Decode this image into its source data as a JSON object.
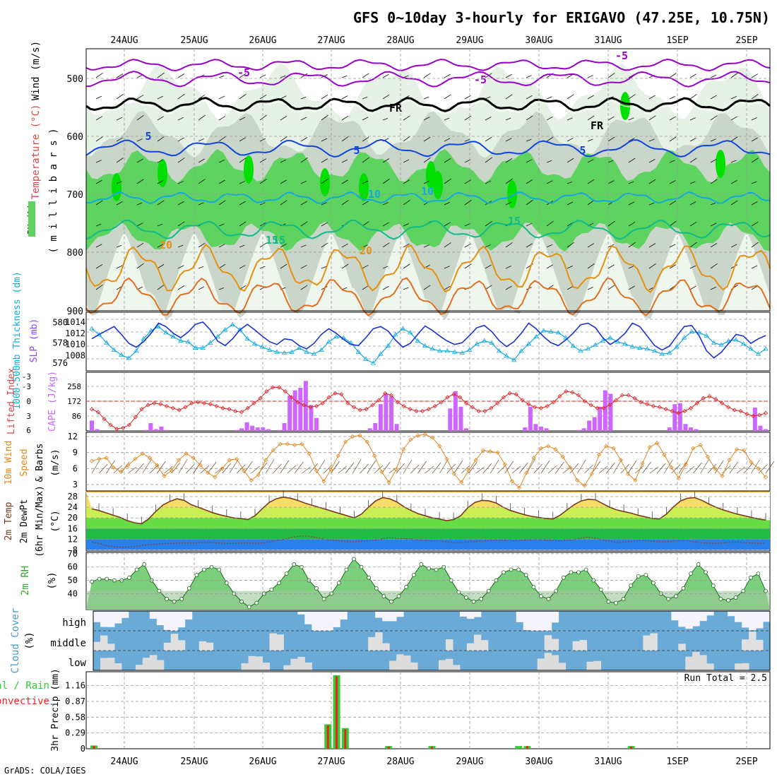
{
  "header": {
    "title": "GFS 0~10day 3-hourly for ERIGAVO (47.25E, 10.75N)",
    "credit": "GrADS: COLA/IGES"
  },
  "dates": [
    "24AUG",
    "25AUG",
    "26AUG",
    "27AUG",
    "28AUG",
    "29AUG",
    "30AUG",
    "31AUG",
    "1SEP",
    "2SEP"
  ],
  "colors": {
    "rh_light": "#e6f2e6",
    "rh_mid": "#c9d6c9",
    "rh_green": "#5fd35f",
    "rh_bright": "#00e000",
    "temp_purple": "#9900cc",
    "freeze": "#000000",
    "temp_blue": "#1144dd",
    "temp_cyan": "#11aadd",
    "temp_teal": "#11bb88",
    "temp_orange": "#e6900f",
    "cape": "#cc66ff",
    "li": "#dd2222",
    "wind": "#dd8822",
    "cloud": "#6aaad6",
    "precip_total": "#33cc33",
    "precip_conv": "#ee2222"
  },
  "chart_data": [
    {
      "type": "heatmap",
      "name_panel": "profile",
      "ylabel_left": "Wind (m/s)",
      "ylabel_temp": "Temperature (°C)",
      "ylabel_rh": "RH (%)",
      "ylabel_right": "( m i l l i b a r s )",
      "yticks": [
        500,
        600,
        700,
        800,
        900
      ],
      "ylim": [
        900,
        450
      ],
      "contour_labels": [
        "-5",
        "-5",
        "-5",
        "FR",
        "FR",
        "5",
        "5",
        "5",
        "10",
        "10",
        "15",
        "15",
        "15",
        "20",
        "20"
      ],
      "grid": true
    },
    {
      "type": "line",
      "name_panel": "thickness-slp",
      "ylabel_left": "1000-500mb Thickness (dm)",
      "ylabel_right": "SLP (mb)",
      "yticks_left": [
        "580",
        "578",
        "576"
      ],
      "yticks_right": [
        "1014",
        "1012",
        "1010",
        "1008"
      ],
      "series": [
        {
          "name": "1000-500mb Thickness (dm)",
          "values": [
            579.4,
            578.8,
            578.0,
            577.3,
            576.8,
            576.5,
            577.2,
            578.4,
            579.2,
            579.6,
            579.0,
            578.6,
            578.2,
            578.1,
            577.5,
            577.5,
            578.0,
            578.6,
            579.3,
            579.8,
            579.3,
            578.4,
            577.9,
            577.6,
            577.3,
            577.1,
            577.0,
            577.1,
            577.5,
            577.1,
            576.9,
            577.3,
            578.1,
            578.6,
            578.5,
            578.0,
            577.1,
            576.4,
            576.0,
            576.9,
            577.7,
            578.8,
            579.4,
            579.0,
            578.2,
            577.7,
            577.4,
            577.2,
            577.2,
            577.1,
            577.0,
            577.3,
            577.9,
            578.2,
            578.0,
            577.2,
            576.7,
            576.3,
            577.2,
            577.9,
            578.6,
            579.2,
            579.1,
            579.0,
            578.5,
            577.7,
            577.2,
            577.4,
            577.8,
            578.2,
            578.5,
            578.1,
            577.9,
            577.6,
            577.5,
            577.4,
            577.2,
            576.9,
            577.0,
            577.6,
            578.5,
            579.1,
            579.0,
            578.7,
            578.0,
            577.8,
            578.2,
            578.3,
            577.9,
            577.4,
            576.9,
            577.4
          ]
        },
        {
          "name": "SLP (mb)",
          "values": [
            1011.0,
            1011.8,
            1012.5,
            1013.2,
            1011.8,
            1010.2,
            1009.5,
            1010.5,
            1012.0,
            1013.8,
            1013.2,
            1012.0,
            1011.2,
            1012.2,
            1013.6,
            1014.0,
            1012.6,
            1010.6,
            1009.8,
            1011.0,
            1012.6,
            1013.6,
            1012.6,
            1011.5,
            1010.5,
            1010.0,
            1011.0,
            1010.8,
            1009.8,
            1009.2,
            1010.2,
            1011.8,
            1012.8,
            1012.0,
            1010.9,
            1010.0,
            1009.8,
            1011.2,
            1012.8,
            1013.2,
            1012.4,
            1010.8,
            1009.5,
            1010.2,
            1011.8,
            1013.3,
            1012.5,
            1011.5,
            1010.6,
            1010.0,
            1010.3,
            1011.6,
            1013.0,
            1013.4,
            1012.3,
            1010.7,
            1009.6,
            1010.5,
            1012.0,
            1013.8,
            1012.8,
            1011.4,
            1010.3,
            1009.8,
            1010.8,
            1012.0,
            1013.5,
            1013.8,
            1013.0,
            1011.2,
            1010.0,
            1010.8,
            1012.0,
            1013.8,
            1013.2,
            1011.5,
            1009.8,
            1009.0,
            1009.7,
            1011.5,
            1013.2,
            1013.4,
            1011.6,
            1008.9,
            1007.6,
            1008.6,
            1010.2,
            1011.8,
            1011.5,
            1010.2,
            1011.0,
            1011.6
          ]
        }
      ],
      "grid": true
    },
    {
      "type": "bar",
      "name_panel": "cape-li",
      "ylabel_left": "Lifted Index",
      "ylabel_right": "CAPE (J/kg)",
      "yticks_left": [
        "-3",
        "-3",
        "0",
        "3",
        "6"
      ],
      "yticks_right": [
        "258",
        "172",
        "86"
      ],
      "series": [
        {
          "name": "CAPE (J/kg)",
          "values": [
            60,
            10,
            0,
            0,
            0,
            0,
            0,
            0,
            0,
            0,
            5,
            45,
            10,
            25,
            5,
            0,
            0,
            0,
            0,
            0,
            0,
            0,
            0,
            0,
            0,
            0,
            0,
            5,
            15,
            50,
            30,
            20,
            20,
            10,
            0,
            5,
            45,
            205,
            235,
            250,
            290,
            150,
            75,
            0,
            0,
            0,
            0,
            0,
            0,
            0,
            0,
            0,
            15,
            45,
            155,
            215,
            200,
            40,
            0,
            0,
            0,
            0,
            0,
            0,
            0,
            0,
            0,
            130,
            230,
            140,
            15,
            0,
            0,
            0,
            0,
            0,
            0,
            0,
            0,
            0,
            0,
            20,
            140,
            40,
            25,
            15,
            0,
            0,
            0,
            0,
            0,
            5,
            15,
            60,
            80,
            140,
            235,
            215,
            0,
            0,
            0,
            0,
            0,
            0,
            0,
            0,
            0,
            0,
            20,
            155,
            160,
            40,
            20,
            10,
            0,
            0,
            0,
            0,
            0,
            0,
            0,
            0,
            0,
            0,
            135,
            30,
            10
          ]
        },
        {
          "name": "Lifted Index",
          "values": [
            1.6,
            2.2,
            3.6,
            4.8,
            5.6,
            5.4,
            4.8,
            3.2,
            1.6,
            0.8,
            0.4,
            0.6,
            1.0,
            1.4,
            1.8,
            1.2,
            0.4,
            0.2,
            0.4,
            0.6,
            1.0,
            1.4,
            1.6,
            2.0,
            2.2,
            1.4,
            0.4,
            -0.6,
            -2.0,
            -2.8,
            -2.8,
            -2.0,
            -0.8,
            0.2,
            0.8,
            1.2,
            1.0,
            0.4,
            -0.8,
            -1.6,
            -1.4,
            0.4,
            1.2,
            1.8,
            1.6,
            0.8,
            -0.2,
            -1.6,
            -1.2,
            0.2,
            1.0,
            1.6,
            2.0,
            2.0,
            1.6,
            1.0,
            0.2,
            -0.8,
            -1.4,
            -0.8,
            0.4,
            1.2,
            2.0,
            2.0,
            1.4,
            0.4,
            -0.8,
            -1.6,
            -1.4,
            -0.2,
            0.6,
            1.2,
            1.4,
            1.0,
            0.2,
            -1.0,
            -2.0,
            -1.8,
            -1.2,
            0.0,
            0.8,
            1.4,
            1.4,
            0.8,
            -0.2,
            -1.2,
            -1.2,
            -0.6,
            0.2,
            0.6,
            1.0,
            1.2,
            1.6,
            2.0,
            2.4,
            2.0,
            1.4,
            0.4,
            -0.6,
            -1.0,
            -0.4,
            0.4,
            1.2,
            1.8,
            2.0,
            2.6,
            3.0,
            2.8,
            2.4
          ]
        }
      ],
      "grid": true
    },
    {
      "type": "line",
      "name_panel": "wind10m",
      "ylabel_left": "10m Wind Speed & Barbs",
      "ylabel_right": "(m/s)",
      "yticks": [
        "12",
        "9",
        "6",
        "3"
      ],
      "series": [
        {
          "name": "10m Wind Speed",
          "values": [
            7.4,
            7.8,
            8.0,
            6.2,
            5.4,
            6.6,
            7.8,
            8.8,
            8.0,
            6.6,
            4.6,
            5.6,
            7.6,
            8.8,
            8.0,
            6.6,
            5.2,
            4.4,
            6.0,
            7.6,
            7.8,
            5.6,
            3.8,
            4.8,
            7.6,
            9.4,
            10.6,
            10.6,
            10.4,
            10.6,
            8.8,
            5.6,
            3.6,
            5.8,
            8.4,
            11.0,
            12.0,
            12.2,
            11.0,
            8.4,
            5.4,
            3.4,
            5.8,
            9.6,
            11.4,
            12.2,
            12.4,
            11.8,
            10.2,
            7.8,
            5.0,
            3.4,
            5.6,
            7.6,
            9.4,
            9.2,
            9.0,
            6.8,
            3.6,
            2.4,
            5.2,
            8.0,
            9.8,
            10.2,
            9.6,
            8.2,
            6.2,
            3.8,
            2.8,
            5.0,
            8.6,
            10.2,
            9.8,
            7.6,
            5.0,
            3.8,
            7.0,
            10.0,
            10.8,
            8.6,
            6.2,
            4.2,
            6.8,
            9.8,
            10.4,
            8.2,
            6.0,
            4.6,
            7.6,
            9.6,
            9.4,
            7.2,
            6.0,
            4.4
          ]
        }
      ],
      "grid": true
    },
    {
      "type": "area",
      "name_panel": "temp2m",
      "ylabel_left": "2m Temp 2m DewPt (6hr Min/Max)",
      "ylabel_right": "(°C)",
      "yticks": [
        "28",
        "24",
        "20",
        "16",
        "12",
        "8"
      ],
      "series": [
        {
          "name": "2m Temp",
          "values": [
            23.4,
            22.8,
            21.9,
            21.0,
            20.2,
            19.0,
            18.2,
            17.8,
            19.6,
            22.4,
            24.8,
            26.2,
            27.2,
            26.6,
            25.0,
            24.0,
            23.0,
            22.0,
            21.2,
            20.6,
            20.0,
            19.8,
            19.4,
            20.8,
            23.4,
            25.8,
            27.2,
            27.8,
            27.4,
            26.6,
            25.6,
            24.8,
            24.0,
            23.2,
            22.4,
            21.6,
            20.8,
            20.0,
            21.4,
            24.0,
            26.4,
            27.6,
            27.2,
            26.0,
            24.2,
            22.8,
            21.6,
            20.8,
            20.0,
            19.6,
            19.0,
            19.4,
            20.8,
            23.8,
            25.8,
            26.6,
            26.4,
            25.6,
            24.0,
            22.8,
            22.0,
            21.2,
            20.6,
            20.2,
            19.8,
            19.6,
            21.0,
            23.0,
            25.0,
            26.4,
            27.0,
            26.8,
            25.4,
            24.0,
            23.0,
            22.4,
            21.8,
            21.0,
            20.4,
            19.8,
            19.6,
            21.4,
            24.2,
            26.4,
            27.4,
            27.6,
            26.6,
            25.2,
            24.0,
            23.0,
            22.2,
            21.4,
            20.8,
            20.2,
            19.6,
            19.2
          ]
        },
        {
          "name": "2m DewPt",
          "values": [
            11.0,
            10.4,
            9.6,
            9.2,
            9.0,
            9.0,
            9.4,
            9.8,
            10.0,
            10.2,
            10.4,
            10.4,
            10.6,
            10.6,
            10.6,
            10.8,
            10.8,
            10.6,
            10.4,
            10.4,
            10.6,
            10.6,
            10.4,
            10.6,
            11.0,
            11.6,
            12.0,
            12.8,
            13.2,
            13.2,
            12.8,
            12.2,
            11.8,
            11.6,
            11.2,
            11.0,
            11.2,
            11.4,
            11.6,
            12.0,
            12.6,
            12.4,
            12.2,
            12.2,
            11.8,
            11.6,
            11.4,
            11.4,
            11.0,
            10.8,
            10.8,
            11.0,
            11.2,
            11.4,
            11.6,
            11.6,
            11.6,
            11.4,
            11.6,
            11.8,
            12.0,
            11.8,
            11.6,
            11.4,
            11.6,
            11.8,
            12.4,
            12.8,
            12.4,
            11.8,
            11.2,
            10.8,
            11.0,
            11.2,
            11.6,
            11.4,
            11.2,
            11.0,
            11.2,
            11.4,
            11.6,
            11.2,
            10.8,
            10.6,
            10.4,
            10.6,
            10.8,
            11.0,
            10.8,
            10.6,
            10.4,
            10.6
          ]
        }
      ],
      "grid": true
    },
    {
      "type": "area",
      "name_panel": "rh2m",
      "ylabel_left": "2m RH",
      "ylabel_right": "(%)",
      "yticks": [
        "70",
        "60",
        "50",
        "40"
      ],
      "series": [
        {
          "name": "2m RH",
          "values": [
            49,
            51,
            51,
            50,
            50,
            52,
            58,
            62,
            50,
            42,
            36,
            34,
            36,
            44,
            54,
            58,
            60,
            58,
            48,
            40,
            34,
            30,
            33,
            40,
            43,
            48,
            55,
            62,
            60,
            50,
            44,
            36,
            40,
            48,
            58,
            66,
            60,
            52,
            44,
            38,
            34,
            38,
            45,
            54,
            62,
            59,
            58,
            60,
            50,
            41,
            37,
            34,
            36,
            42,
            50,
            56,
            58,
            58,
            54,
            45,
            38,
            36,
            42,
            52,
            56,
            56,
            58,
            50,
            43,
            34,
            33,
            36,
            46,
            53,
            54,
            48,
            40,
            36,
            38,
            44,
            55,
            62,
            56,
            46,
            36,
            35,
            37,
            42,
            52,
            55,
            42
          ]
        }
      ],
      "grid": true
    },
    {
      "type": "table",
      "name_panel": "cloud",
      "ylabel": "Cloud Cover (%)",
      "rows": [
        "high",
        "middle",
        "low"
      ]
    },
    {
      "type": "bar",
      "name_panel": "precip",
      "ylabel_left": "Total / Rain Convective",
      "ylabel_right": "3hr Precip (mm)",
      "yticks": [
        "1.16",
        "0.87",
        "0.58",
        "0.29",
        "0"
      ],
      "annotation": "Run Total = 2.5",
      "series": [
        {
          "name": "Total / Rain",
          "values": [
            {
              "i": 0,
              "v": 0.06
            },
            {
              "i": 27,
              "v": 0.45
            },
            {
              "i": 28,
              "v": 1.35
            },
            {
              "i": 29,
              "v": 0.38
            },
            {
              "i": 34,
              "v": 0.05
            },
            {
              "i": 39,
              "v": 0.05
            },
            {
              "i": 49,
              "v": 0.05
            },
            {
              "i": 50,
              "v": 0.05
            },
            {
              "i": 62,
              "v": 0.05
            }
          ]
        },
        {
          "name": "Convective",
          "values": [
            {
              "i": 0,
              "v": 0.05
            },
            {
              "i": 27,
              "v": 0.43
            },
            {
              "i": 28,
              "v": 1.33
            },
            {
              "i": 29,
              "v": 0.36
            },
            {
              "i": 34,
              "v": 0.04
            },
            {
              "i": 39,
              "v": 0.04
            },
            {
              "i": 50,
              "v": 0.05
            },
            {
              "i": 62,
              "v": 0.04
            }
          ]
        }
      ]
    }
  ]
}
